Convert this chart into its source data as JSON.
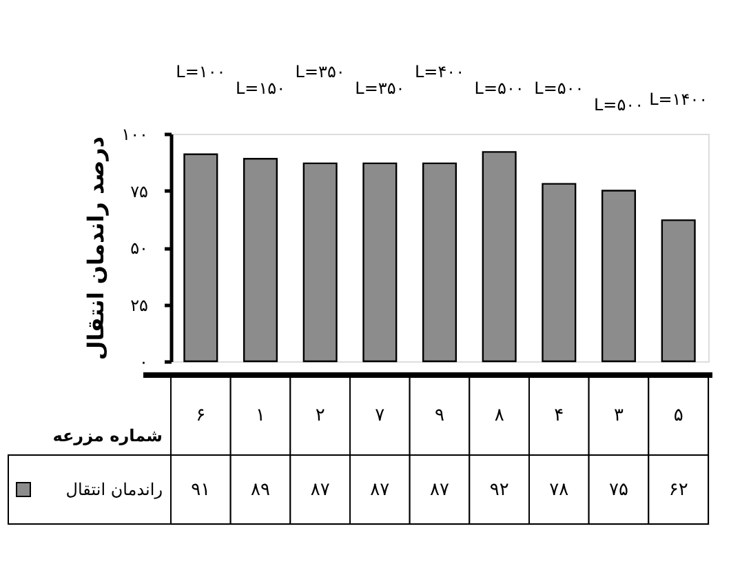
{
  "chart_data": {
    "type": "bar",
    "ylabel": "درصد راندمان انتقال",
    "xlabel": "شماره مزرعه",
    "categories": [
      "۶",
      "۱",
      "۲",
      "۷",
      "۹",
      "۸",
      "۴",
      "۳",
      "۵"
    ],
    "series": [
      {
        "name": "راندمان انتقال",
        "color": "#8c8c8c",
        "values": [
          91,
          89,
          87,
          87,
          87,
          92,
          78,
          75,
          62
        ],
        "value_labels": [
          "۹۱",
          "۸۹",
          "۸۷",
          "۸۷",
          "۸۷",
          "۹۲",
          "۷۸",
          "۷۵",
          "۶۲"
        ]
      }
    ],
    "ylim": [
      0,
      100
    ],
    "yticks": [
      {
        "value": 0,
        "label": "۰"
      },
      {
        "value": 25,
        "label": "۲۵"
      },
      {
        "value": 50,
        "label": "۵۰"
      },
      {
        "value": 75,
        "label": "۷۵"
      },
      {
        "value": 100,
        "label": "۱۰۰"
      }
    ],
    "annotations": [
      "L=۱۰۰",
      "L=۱۵۰",
      "L=۳۵۰",
      "L=۳۵۰",
      "L=۴۰۰",
      "L=۵۰۰",
      "L=۵۰۰",
      "L=۵۰۰",
      "L=۱۴۰۰"
    ],
    "grid": false,
    "legend": "bottom left"
  }
}
